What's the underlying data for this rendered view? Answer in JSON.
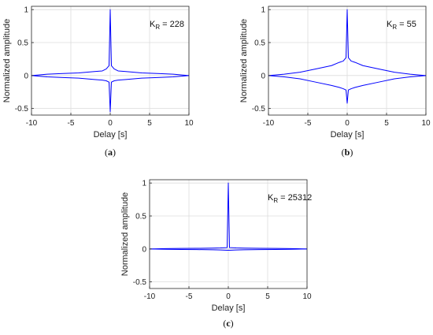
{
  "chart_data": [
    {
      "type": "line",
      "panel": "(a)",
      "panel_letter": "a",
      "xlabel": "Delay [s]",
      "ylabel": "Normalized amplitude",
      "xlim": [
        -10,
        10
      ],
      "ylim": [
        -0.6,
        1.05
      ],
      "xticks": [
        -10,
        -5,
        0,
        5,
        10
      ],
      "yticks": [
        -0.5,
        0,
        0.5,
        1
      ],
      "grid": true,
      "line_color": "#0000ff",
      "annotation": {
        "main": "K",
        "sub": "R",
        "rest": " = 228"
      },
      "series": [
        {
          "x": [
            -10,
            -8,
            -6,
            -4,
            -2,
            -1,
            -0.5,
            -0.15,
            0,
            0.15,
            0.5,
            1,
            2,
            4,
            6,
            8,
            10
          ],
          "y": [
            0,
            0.02,
            0.03,
            0.04,
            0.06,
            0.07,
            0.1,
            0.15,
            1.0,
            0.15,
            0.1,
            0.07,
            0.06,
            0.04,
            0.03,
            0.02,
            0
          ]
        },
        {
          "x": [
            -10,
            -8,
            -6,
            -4,
            -2,
            -1,
            -0.5,
            -0.15,
            0,
            0.15,
            0.5,
            1,
            2,
            4,
            6,
            8,
            10
          ],
          "y": [
            0,
            -0.02,
            -0.03,
            -0.04,
            -0.06,
            -0.07,
            -0.08,
            -0.1,
            -0.55,
            -0.1,
            -0.08,
            -0.07,
            -0.06,
            -0.04,
            -0.03,
            -0.02,
            0
          ]
        }
      ]
    },
    {
      "type": "line",
      "panel": "(b)",
      "panel_letter": "b",
      "xlabel": "Delay [s]",
      "ylabel": "Normalized amplitude",
      "xlim": [
        -10,
        10
      ],
      "ylim": [
        -0.6,
        1.05
      ],
      "xticks": [
        -10,
        -5,
        0,
        5,
        10
      ],
      "yticks": [
        -0.5,
        0,
        0.5,
        1
      ],
      "grid": true,
      "line_color": "#0000ff",
      "annotation": {
        "main": "K",
        "sub": "R",
        "rest": " = 55"
      },
      "series": [
        {
          "x": [
            -10,
            -8,
            -6,
            -4,
            -2,
            -1,
            -0.5,
            -0.15,
            0,
            0.15,
            0.5,
            1,
            2,
            4,
            6,
            8,
            10
          ],
          "y": [
            0,
            0.02,
            0.05,
            0.1,
            0.15,
            0.2,
            0.22,
            0.27,
            1.0,
            0.27,
            0.22,
            0.2,
            0.15,
            0.1,
            0.05,
            0.02,
            0
          ]
        },
        {
          "x": [
            -10,
            -8,
            -6,
            -4,
            -2,
            -1,
            -0.5,
            -0.15,
            0,
            0.15,
            0.5,
            1,
            2,
            4,
            6,
            8,
            10
          ],
          "y": [
            0,
            -0.02,
            -0.05,
            -0.1,
            -0.15,
            -0.18,
            -0.2,
            -0.22,
            -0.42,
            -0.22,
            -0.2,
            -0.18,
            -0.15,
            -0.1,
            -0.05,
            -0.02,
            0
          ]
        }
      ]
    },
    {
      "type": "line",
      "panel": "(c)",
      "panel_letter": "c",
      "xlabel": "Delay [s]",
      "ylabel": "Normalized amplitude",
      "xlim": [
        -10,
        10
      ],
      "ylim": [
        -0.6,
        1.05
      ],
      "xticks": [
        -10,
        -5,
        0,
        5,
        10
      ],
      "yticks": [
        -0.5,
        0,
        0.5,
        1
      ],
      "grid": true,
      "line_color": "#0000ff",
      "annotation": {
        "main": "K",
        "sub": "R",
        "rest": " = 25312"
      },
      "series": [
        {
          "x": [
            -10,
            -8,
            -6,
            -4,
            -2,
            -1,
            -0.15,
            0,
            0.15,
            1,
            2,
            4,
            6,
            8,
            10
          ],
          "y": [
            0,
            0.005,
            0.008,
            0.01,
            0.012,
            0.015,
            0.02,
            1.0,
            0.02,
            0.015,
            0.012,
            0.01,
            0.008,
            0.005,
            0
          ]
        },
        {
          "x": [
            -10,
            -8,
            -6,
            -4,
            -2,
            -1,
            -0.15,
            0,
            0.15,
            1,
            2,
            4,
            6,
            8,
            10
          ],
          "y": [
            0,
            -0.005,
            -0.008,
            -0.01,
            -0.012,
            -0.015,
            -0.02,
            -0.02,
            -0.02,
            -0.015,
            -0.012,
            -0.01,
            -0.008,
            -0.005,
            0
          ]
        }
      ]
    }
  ]
}
